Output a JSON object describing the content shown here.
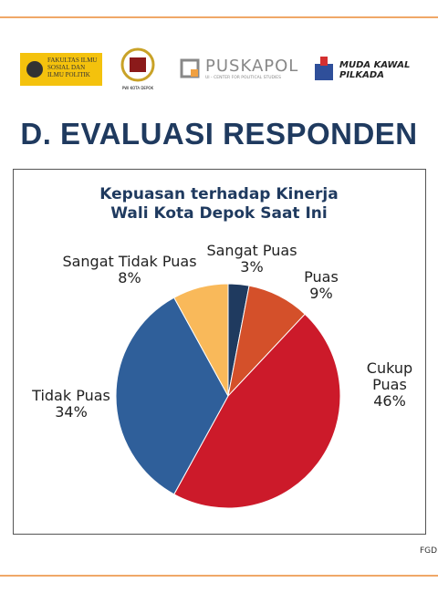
{
  "header": {
    "fisip": "FAKULTAS ILMU SOSIAL DAN ILMU POLITIK",
    "pwi": "PWI KOTA DEPOK",
    "puskapol": "PUSKAPOL",
    "puskapol_sub": "UI - CENTER FOR POLITICAL STUDIES",
    "mkp": "MUDA KAWAL PILKADA",
    "heading": "D. EVALUASI RESPONDEN"
  },
  "footer": "FGD",
  "chart_data": {
    "type": "pie",
    "title": "Kepuasan terhadap Kinerja Wali Kota Depok Saat Ini",
    "categories": [
      "Sangat Puas",
      "Puas",
      "Cukup Puas",
      "Tidak Puas",
      "Sangat Tidak Puas"
    ],
    "values": [
      3,
      9,
      46,
      34,
      8
    ],
    "value_labels": [
      "3%",
      "9%",
      "46%",
      "34%",
      "8%"
    ],
    "colors": [
      "#1f3a5f",
      "#d4502a",
      "#cc1a2a",
      "#2f5f9a",
      "#f9b95a"
    ]
  }
}
